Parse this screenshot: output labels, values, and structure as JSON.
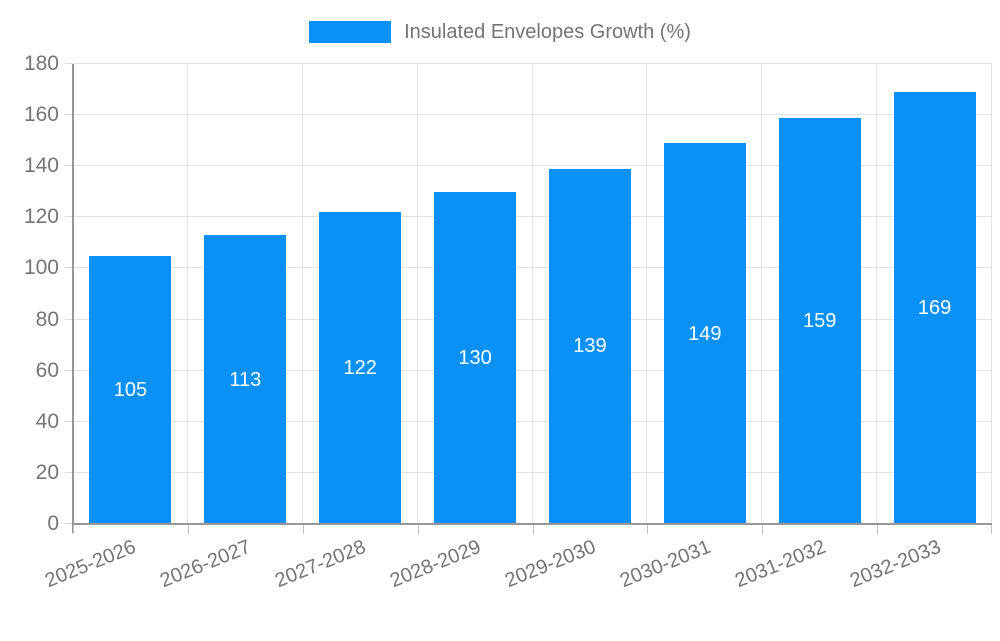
{
  "chart_data": {
    "type": "bar",
    "title": "",
    "legend": "Insulated Envelopes Growth (%)",
    "legend_position": "top",
    "categories": [
      "2025-2026",
      "2026-2027",
      "2027-2028",
      "2028-2029",
      "2029-2030",
      "2030-2031",
      "2031-2032",
      "2032-2033"
    ],
    "values": [
      105,
      113,
      122,
      130,
      139,
      149,
      159,
      169
    ],
    "xlabel": "",
    "ylabel": "",
    "ylim": [
      0,
      180
    ],
    "yticks": [
      0,
      20,
      40,
      60,
      80,
      100,
      120,
      140,
      160,
      180
    ],
    "grid": true,
    "value_labels": "inside-center",
    "colors": {
      "bar": "#0a91f8",
      "grid": "#e3e3e3",
      "axis": "#979797",
      "text": "#757575",
      "value_label": "#ffffff",
      "background": "#ffffff"
    }
  }
}
